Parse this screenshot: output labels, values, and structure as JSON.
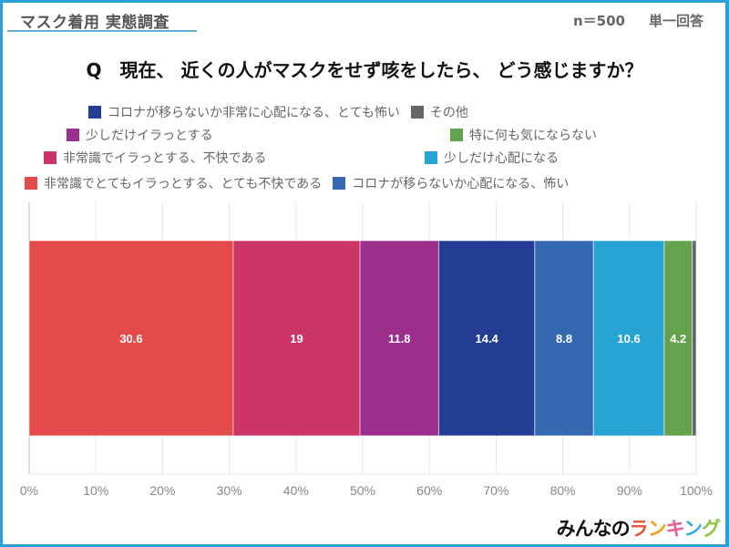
{
  "header": {
    "survey_title": "マスク着用 実態調査",
    "sample_size": "n＝500",
    "answer_type": "単一回答"
  },
  "question": "Q　現在、 近くの人がマスクをせず咳をしたら、 どう感じますか？",
  "legend_rows": [
    [
      {
        "label": "コロナが移らないか非常に心配になる、とても怖い",
        "color": "#233d95"
      },
      {
        "label": "その他",
        "color": "#666666"
      }
    ],
    [
      {
        "label": "少しだけイラっとする",
        "color": "#9c2f8c"
      },
      {
        "label": "特に何も気にならない",
        "color": "#65a24e"
      }
    ],
    [
      {
        "label": "非常識でイラっとする、不快である",
        "color": "#cc3366"
      },
      {
        "label": "少しだけ心配になる",
        "color": "#27a3d4"
      }
    ],
    [
      {
        "label": "非常識でとてもイラっとする、とても不快である",
        "color": "#e54a4a"
      },
      {
        "label": "コロナが移らないか心配になる、怖い",
        "color": "#3469b1"
      }
    ]
  ],
  "chart_data": {
    "type": "bar",
    "orientation": "horizontal",
    "stacked": true,
    "title": "現在、近くの人がマスクをせず咳をしたら、どう感じますか？",
    "xlabel": "",
    "ylabel": "",
    "xlim": [
      0,
      100
    ],
    "x_tick_labels": [
      "0%",
      "10%",
      "20%",
      "30%",
      "40%",
      "50%",
      "60%",
      "70%",
      "80%",
      "90%",
      "100%"
    ],
    "grid": true,
    "legend_position": "top",
    "series": [
      {
        "name": "非常識でとてもイラっとする、とても不快である",
        "value": 30.6,
        "color": "#e54a4a",
        "label": "30.6"
      },
      {
        "name": "非常識でイラっとする、不快である",
        "value": 19,
        "color": "#cc3366",
        "label": "19"
      },
      {
        "name": "少しだけイラっとする",
        "value": 11.8,
        "color": "#9c2f8c",
        "label": "11.8"
      },
      {
        "name": "コロナが移らないか非常に心配になる、とても怖い",
        "value": 14.4,
        "color": "#233d95",
        "label": "14.4"
      },
      {
        "name": "コロナが移らないか心配になる、怖い",
        "value": 8.8,
        "color": "#3469b1",
        "label": "8.8"
      },
      {
        "name": "少しだけ心配になる",
        "value": 10.6,
        "color": "#27a3d4",
        "label": "10.6"
      },
      {
        "name": "特に何も気にならない",
        "value": 4.2,
        "color": "#65a24e",
        "label": "4.2"
      },
      {
        "name": "その他",
        "value": 0.6,
        "color": "#666666",
        "label": ""
      }
    ]
  },
  "logo": {
    "text_dark": "みんなの",
    "text_color_chars": [
      {
        "char": "ラ",
        "color": "#e8553a"
      },
      {
        "char": "ン",
        "color": "#f0a020"
      },
      {
        "char": "キ",
        "color": "#e85a9a"
      },
      {
        "char": "ン",
        "color": "#3aaee0"
      },
      {
        "char": "グ",
        "color": "#8cc63e"
      }
    ]
  }
}
